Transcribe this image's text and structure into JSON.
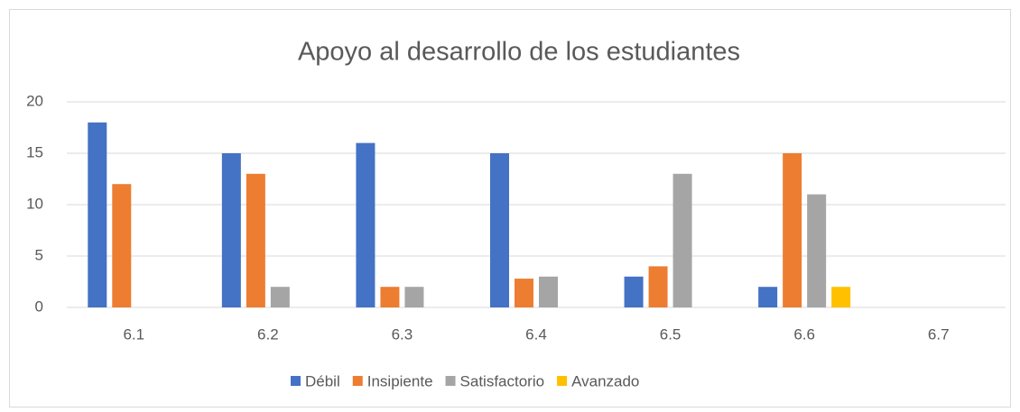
{
  "chart_data": {
    "type": "bar",
    "title": "Apoyo al desarrollo de los estudiantes",
    "categories": [
      "6.1",
      "6.2",
      "6.3",
      "6.4",
      "6.5",
      "6.6",
      "6.7"
    ],
    "series": [
      {
        "name": "Débil",
        "color": "#4472c4",
        "values": [
          18,
          15,
          16,
          15,
          3,
          2,
          0
        ]
      },
      {
        "name": "Insipiente",
        "color": "#ed7d31",
        "values": [
          12,
          13,
          2,
          2.8,
          4,
          15,
          0
        ]
      },
      {
        "name": "Satisfactorio",
        "color": "#a5a5a5",
        "values": [
          0,
          2,
          2,
          3,
          13,
          11,
          0
        ]
      },
      {
        "name": "Avanzado",
        "color": "#ffc000",
        "values": [
          0,
          0,
          0,
          0,
          0,
          2,
          0
        ]
      }
    ],
    "ylim": [
      0,
      20
    ],
    "yticks": [
      0,
      5,
      10,
      15,
      20
    ],
    "grid": true,
    "legend": "bottom"
  }
}
